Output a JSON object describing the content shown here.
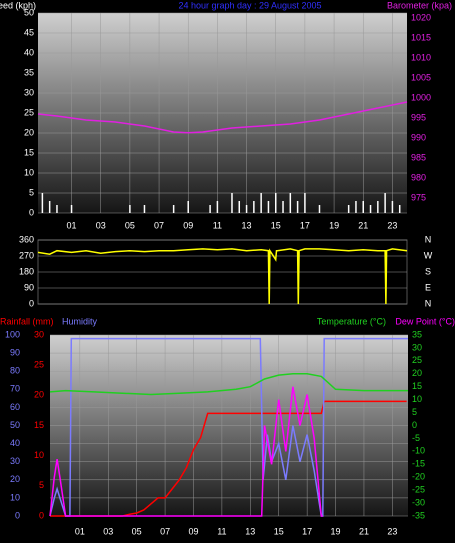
{
  "chart_data": [
    {
      "type": "line",
      "title": "24 hour graph day : 29 August 2005",
      "xlim": [
        -1.3,
        24
      ],
      "xticks": [
        {
          "value": 1,
          "label": "01"
        },
        {
          "value": 3,
          "label": "03"
        },
        {
          "value": 5,
          "label": "05"
        },
        {
          "value": 7,
          "label": "07"
        },
        {
          "value": 9,
          "label": "09"
        },
        11,
        13,
        15,
        17,
        19,
        21,
        23
      ],
      "ylim": [
        0,
        50
      ],
      "yticks": [
        0,
        5,
        10,
        15,
        20,
        25,
        30,
        35,
        40,
        45,
        50
      ],
      "y2lim": [
        971.25,
        1021.25
      ],
      "y2ticks": [
        975,
        980,
        985,
        990,
        995,
        1000,
        1005,
        1010,
        1015,
        1020
      ],
      "grid": true,
      "series": [
        {
          "name": "Windspeed (kph)",
          "color": "#ffffff",
          "kind": "bars",
          "axis": "y",
          "x": [
            -1,
            -0.5,
            0,
            1,
            5,
            6,
            8,
            9,
            10.5,
            11,
            12,
            12.5,
            13,
            13.5,
            14,
            14.5,
            15,
            15.5,
            16,
            16.5,
            17,
            18,
            20,
            20.5,
            21,
            21.5,
            22,
            22.5,
            23,
            23.5
          ],
          "values": [
            5,
            3,
            2,
            2,
            2,
            2,
            2,
            3,
            2,
            3,
            5,
            3,
            2,
            3,
            5,
            3,
            5,
            3,
            5,
            3,
            5,
            2,
            2,
            3,
            3,
            2,
            3,
            5,
            3,
            2
          ]
        },
        {
          "name": "Barometer (kpa)",
          "color": "#e020e0",
          "axis": "y2",
          "x": [
            -1.3,
            0,
            2,
            4,
            6,
            8,
            9,
            10,
            12,
            14,
            16,
            18,
            20,
            22,
            24
          ],
          "values": [
            996,
            995.5,
            994.5,
            994,
            993,
            991.5,
            991.3,
            991.5,
            992.5,
            993,
            993.5,
            994.5,
            996,
            997.5,
            999
          ]
        }
      ]
    },
    {
      "type": "line",
      "xlim": [
        -1.3,
        24
      ],
      "ylim": [
        0,
        360
      ],
      "yticks": [
        0,
        90,
        180,
        270,
        360
      ],
      "y2lim": [
        0,
        360
      ],
      "y2ticks": [
        {
          "value": 360,
          "label": "N"
        },
        {
          "value": 270,
          "label": "W"
        },
        {
          "value": 180,
          "label": "S"
        },
        {
          "value": 90,
          "label": "E"
        },
        {
          "value": 0,
          "label": "N"
        }
      ],
      "grid": true,
      "series": [
        {
          "color": "#ffff00",
          "axis": "y",
          "x": [
            -1.3,
            -0.5,
            0,
            1,
            2,
            3,
            4,
            5,
            6,
            7,
            8,
            9,
            10,
            11,
            12,
            13,
            14,
            14.5,
            14.55,
            14.6,
            15,
            15.05,
            15.1,
            16,
            16.5,
            16.55,
            16.6,
            17,
            18,
            19,
            20,
            21,
            22,
            22.5,
            22.55,
            22.6,
            23,
            24
          ],
          "values": [
            290,
            280,
            300,
            290,
            300,
            285,
            295,
            300,
            295,
            300,
            300,
            305,
            310,
            305,
            310,
            300,
            305,
            300,
            0,
            300,
            250,
            300,
            300,
            310,
            300,
            0,
            300,
            310,
            310,
            305,
            300,
            305,
            300,
            300,
            0,
            300,
            310,
            300
          ]
        }
      ]
    },
    {
      "type": "line",
      "xlim": [
        -1.1,
        24.1
      ],
      "xticks": [
        {
          "value": 1,
          "label": "01"
        },
        {
          "value": 3,
          "label": "03"
        },
        {
          "value": 5,
          "label": "05"
        },
        {
          "value": 7,
          "label": "07"
        },
        {
          "value": 9,
          "label": "09"
        },
        11,
        13,
        15,
        17,
        19,
        21,
        23
      ],
      "ylim": [
        0,
        100
      ],
      "yticks": [
        0,
        10,
        20,
        30,
        40,
        50,
        60,
        70,
        80,
        90,
        100
      ],
      "y3lim": [
        0,
        30
      ],
      "y3ticks": [
        0,
        5,
        10,
        15,
        20,
        25,
        30
      ],
      "y2lim": [
        -35,
        35
      ],
      "y2ticks": [
        -35,
        -30,
        -25,
        -20,
        -15,
        -10,
        -5,
        0,
        5,
        10,
        15,
        20,
        25,
        30,
        35
      ],
      "grid": true,
      "series": [
        {
          "name": "Rainfall (mm)",
          "color": "#ff0000",
          "axis": "y3",
          "x": [
            -1.1,
            4,
            4.5,
            5,
            5.5,
            6,
            6.5,
            7,
            7.5,
            8,
            8.5,
            9,
            9.5,
            10,
            13.8,
            14,
            18,
            18.2,
            24
          ],
          "values": [
            0,
            0,
            0.3,
            0.5,
            1,
            2,
            3,
            3,
            4.5,
            6,
            8,
            11,
            13,
            17,
            17,
            17,
            17,
            19,
            19
          ]
        },
        {
          "name": "Humidity",
          "color": "#7b7bff",
          "axis": "y",
          "x": [
            -1.1,
            -0.8,
            -0.6,
            -0.4,
            0,
            0.3,
            0.4,
            13.7,
            13.9,
            14.2,
            14.5,
            15,
            15.5,
            16,
            16.5,
            17,
            17.5,
            18,
            18.1,
            18.2,
            24.1
          ],
          "values": [
            0,
            10,
            15,
            10,
            0,
            0,
            98,
            98,
            20,
            45,
            30,
            40,
            20,
            50,
            30,
            45,
            25,
            0,
            0,
            98,
            98
          ]
        },
        {
          "name": "Temperature (°C)",
          "color": "#20d020",
          "axis": "y2",
          "x": [
            -1.1,
            0,
            2,
            4,
            6,
            8,
            10,
            12,
            13,
            14,
            15,
            16,
            17,
            18,
            19,
            21,
            24.1
          ],
          "values": [
            13,
            13.5,
            13,
            12.5,
            12,
            12.5,
            13,
            14,
            15,
            18,
            19.5,
            20,
            20,
            19,
            14,
            13.5,
            13.5
          ]
        },
        {
          "name": "Dew Point (°C)",
          "color": "#ff00ff",
          "axis": "y2",
          "x": [
            -1.1,
            -0.8,
            -0.6,
            -0.4,
            0,
            13.8,
            14,
            14.5,
            15,
            15.5,
            16,
            16.5,
            17,
            17.5,
            18,
            18.1
          ],
          "values": [
            -35,
            -20,
            -13,
            -20,
            -35,
            -35,
            0,
            -15,
            10,
            -10,
            15,
            0,
            12,
            -5,
            -35,
            -35
          ]
        }
      ]
    }
  ]
}
